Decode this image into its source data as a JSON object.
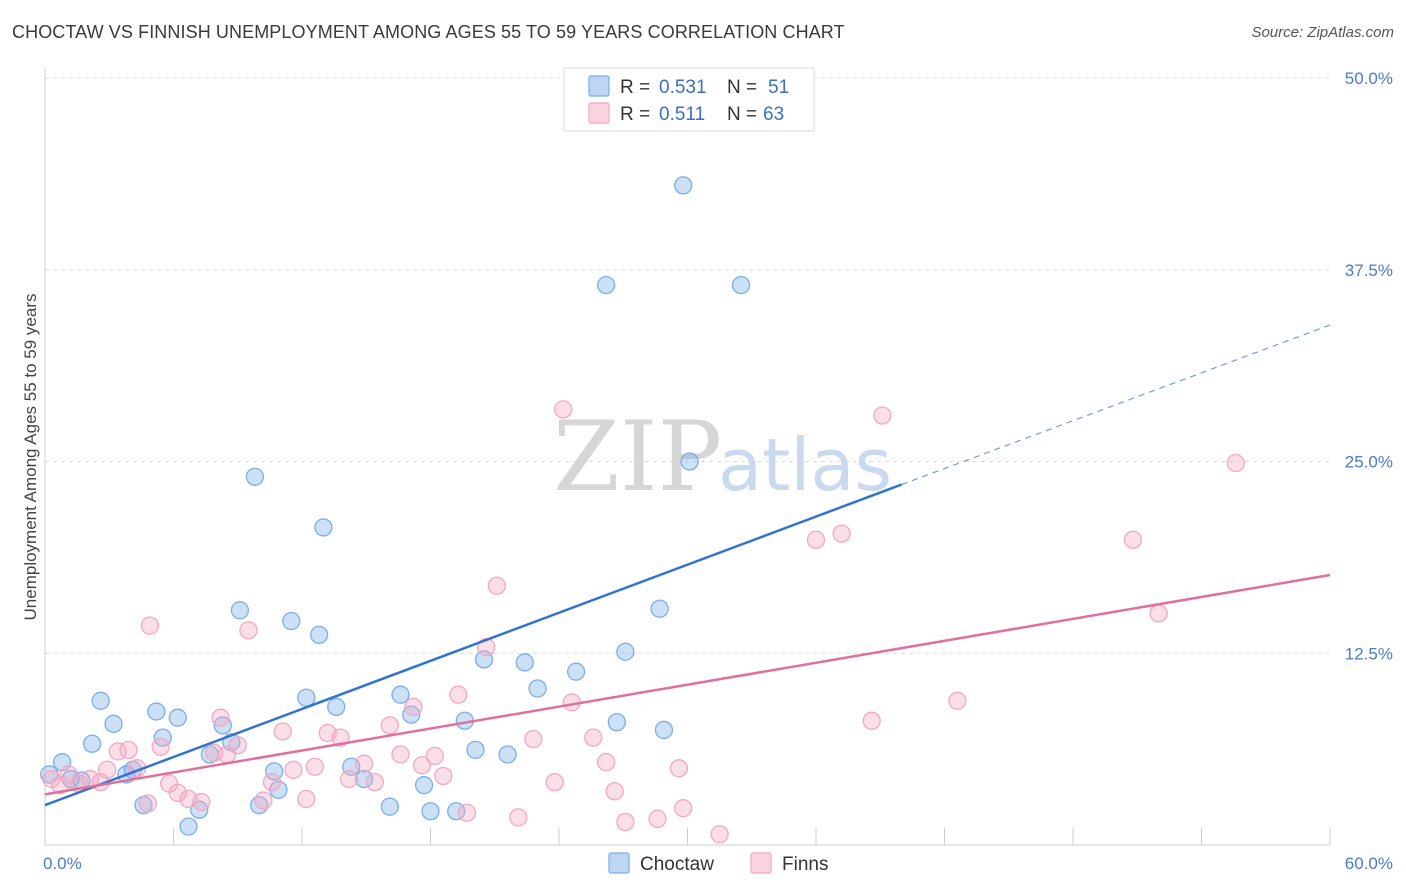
{
  "title": "CHOCTAW VS FINNISH UNEMPLOYMENT AMONG AGES 55 TO 59 YEARS CORRELATION CHART",
  "source": "Source: ZipAtlas.com",
  "watermark": {
    "zip": "ZIP",
    "atlas": "atlas"
  },
  "chart_data": {
    "type": "scatter",
    "xlabel": "",
    "ylabel": "Unemployment Among Ages 55 to 59 years",
    "xlim": [
      0,
      60
    ],
    "ylim": [
      0,
      50
    ],
    "x_tick_labels": [
      {
        "value": 0,
        "label": "0.0%"
      },
      {
        "value": 60,
        "label": "60.0%"
      }
    ],
    "y_tick_labels": [
      {
        "value": 12.5,
        "label": "12.5%"
      },
      {
        "value": 25,
        "label": "25.0%"
      },
      {
        "value": 37.5,
        "label": "37.5%"
      },
      {
        "value": 50,
        "label": "50.0%"
      }
    ],
    "x_minor_ticks": [
      6,
      12,
      18,
      24,
      30,
      36,
      42,
      48,
      54,
      60
    ],
    "grid": true,
    "legend_position": "top-center",
    "series": [
      {
        "name": "Choctaw",
        "color": "#7aaee8",
        "line_color": "#2f74d0",
        "R": "0.531",
        "N": "51",
        "trend": {
          "x_start": 0,
          "y_start": 2.6,
          "x_solid_end": 40,
          "y_solid_end": 23.5,
          "x_end": 60,
          "y_end": 33.9
        },
        "points": [
          [
            0.2,
            4.6
          ],
          [
            0.8,
            5.4
          ],
          [
            1.2,
            4.3
          ],
          [
            1.7,
            4.2
          ],
          [
            2.2,
            6.6
          ],
          [
            2.6,
            9.4
          ],
          [
            3.2,
            7.9
          ],
          [
            3.8,
            4.6
          ],
          [
            4.1,
            4.9
          ],
          [
            4.6,
            2.6
          ],
          [
            5.2,
            8.7
          ],
          [
            5.5,
            7.0
          ],
          [
            6.2,
            8.3
          ],
          [
            6.7,
            1.2
          ],
          [
            7.2,
            2.3
          ],
          [
            7.7,
            5.9
          ],
          [
            8.3,
            7.8
          ],
          [
            8.7,
            6.7
          ],
          [
            9.1,
            15.3
          ],
          [
            9.8,
            24.0
          ],
          [
            10.0,
            2.6
          ],
          [
            10.7,
            4.8
          ],
          [
            10.9,
            3.6
          ],
          [
            11.5,
            14.6
          ],
          [
            12.2,
            9.6
          ],
          [
            12.8,
            13.7
          ],
          [
            13.0,
            20.7
          ],
          [
            13.6,
            9.0
          ],
          [
            14.3,
            5.1
          ],
          [
            14.9,
            4.3
          ],
          [
            16.1,
            2.5
          ],
          [
            16.6,
            9.8
          ],
          [
            17.1,
            8.5
          ],
          [
            17.7,
            3.9
          ],
          [
            18.0,
            2.2
          ],
          [
            19.2,
            2.2
          ],
          [
            19.6,
            8.1
          ],
          [
            20.1,
            6.2
          ],
          [
            20.5,
            12.1
          ],
          [
            21.6,
            5.9
          ],
          [
            22.4,
            11.9
          ],
          [
            23.0,
            10.2
          ],
          [
            24.8,
            11.3
          ],
          [
            26.2,
            36.5
          ],
          [
            26.7,
            8.0
          ],
          [
            27.1,
            12.6
          ],
          [
            28.7,
            15.4
          ],
          [
            28.9,
            7.5
          ],
          [
            29.8,
            43.0
          ],
          [
            30.1,
            25.0
          ],
          [
            32.5,
            36.5
          ]
        ]
      },
      {
        "name": "Finns",
        "color": "#f3a7c2",
        "line_color": "#e06f9b",
        "R": "0.511",
        "N": "63",
        "trend": {
          "x_start": 0,
          "y_start": 3.3,
          "x_end": 60,
          "y_end": 17.6
        },
        "points": [
          [
            0.3,
            4.3
          ],
          [
            0.7,
            3.9
          ],
          [
            1.1,
            4.6
          ],
          [
            1.6,
            4.0
          ],
          [
            2.1,
            4.3
          ],
          [
            2.6,
            4.1
          ],
          [
            2.9,
            4.9
          ],
          [
            3.4,
            6.1
          ],
          [
            3.9,
            6.2
          ],
          [
            4.3,
            5.0
          ],
          [
            4.8,
            2.7
          ],
          [
            4.9,
            14.3
          ],
          [
            5.4,
            6.4
          ],
          [
            5.8,
            4.0
          ],
          [
            6.2,
            3.4
          ],
          [
            6.7,
            3.0
          ],
          [
            7.3,
            2.8
          ],
          [
            7.9,
            6.0
          ],
          [
            8.2,
            8.3
          ],
          [
            8.5,
            5.9
          ],
          [
            9.0,
            6.5
          ],
          [
            9.5,
            14.0
          ],
          [
            10.2,
            2.9
          ],
          [
            10.6,
            4.1
          ],
          [
            11.1,
            7.4
          ],
          [
            11.6,
            4.9
          ],
          [
            12.2,
            3.0
          ],
          [
            12.6,
            5.1
          ],
          [
            13.2,
            7.3
          ],
          [
            13.8,
            7.0
          ],
          [
            14.2,
            4.3
          ],
          [
            14.9,
            5.3
          ],
          [
            15.4,
            4.1
          ],
          [
            16.1,
            7.8
          ],
          [
            16.6,
            5.9
          ],
          [
            17.2,
            9.0
          ],
          [
            17.6,
            5.2
          ],
          [
            18.2,
            5.8
          ],
          [
            18.6,
            4.5
          ],
          [
            19.3,
            9.8
          ],
          [
            19.7,
            2.1
          ],
          [
            20.6,
            12.9
          ],
          [
            21.1,
            16.9
          ],
          [
            22.1,
            1.8
          ],
          [
            22.8,
            6.9
          ],
          [
            23.8,
            4.1
          ],
          [
            24.2,
            28.4
          ],
          [
            24.6,
            9.3
          ],
          [
            25.6,
            7.0
          ],
          [
            26.2,
            5.4
          ],
          [
            26.6,
            3.5
          ],
          [
            27.1,
            1.5
          ],
          [
            28.6,
            1.7
          ],
          [
            29.6,
            5.0
          ],
          [
            29.8,
            2.4
          ],
          [
            31.5,
            0.7
          ],
          [
            36.0,
            19.9
          ],
          [
            37.2,
            20.3
          ],
          [
            38.6,
            8.1
          ],
          [
            39.1,
            28.0
          ],
          [
            42.6,
            9.4
          ],
          [
            50.8,
            19.9
          ],
          [
            52.0,
            15.1
          ],
          [
            55.6,
            24.9
          ]
        ]
      }
    ]
  }
}
